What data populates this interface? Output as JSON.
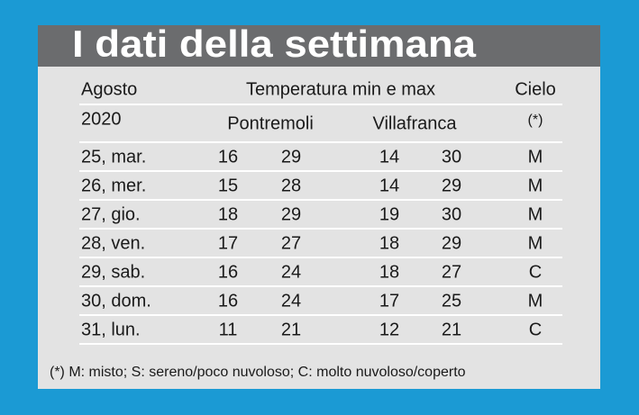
{
  "title": "I dati della settimana",
  "header": {
    "month": "Agosto",
    "temperature": "Temperatura min e max",
    "sky": "Cielo",
    "year": "2020",
    "stations": [
      "Pontremoli",
      "Villafranca"
    ],
    "sky_note": "(*)"
  },
  "rows": [
    [
      "25, mar.",
      16,
      29,
      14,
      30,
      "M"
    ],
    [
      "26, mer.",
      15,
      28,
      14,
      29,
      "M"
    ],
    [
      "27, gio.",
      18,
      29,
      19,
      30,
      "M"
    ],
    [
      "28, ven.",
      17,
      27,
      18,
      29,
      "M"
    ],
    [
      "29, sab.",
      16,
      24,
      18,
      27,
      "C"
    ],
    [
      "30, dom.",
      16,
      24,
      17,
      25,
      "M"
    ],
    [
      "31, lun.",
      11,
      21,
      12,
      21,
      "C"
    ]
  ],
  "footnote": "(*) M: misto; S: sereno/poco nuvoloso; C: molto nuvoloso/coperto"
}
